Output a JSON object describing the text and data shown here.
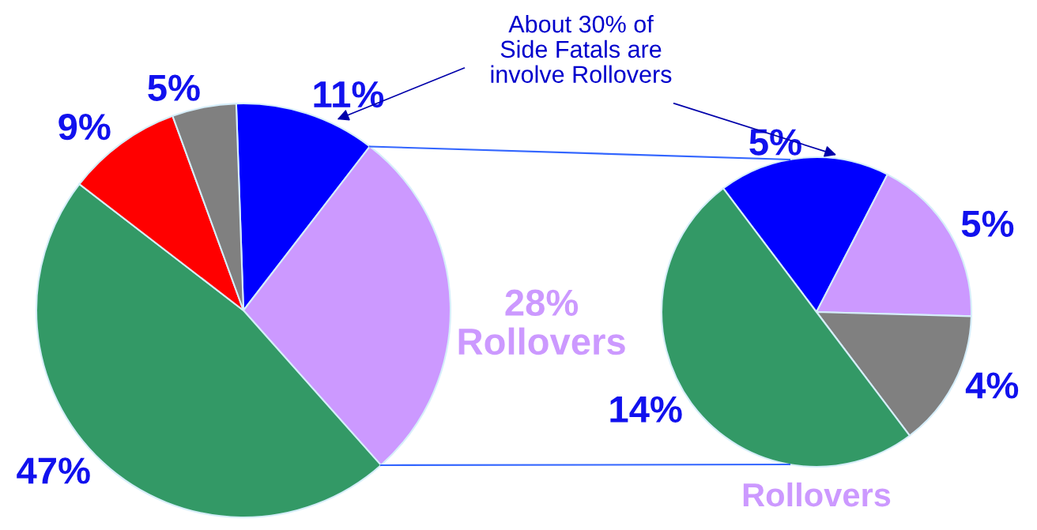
{
  "chart_data": [
    {
      "type": "pie",
      "categories": [
        null,
        "Rollovers",
        null,
        null,
        null
      ],
      "values": [
        11,
        28,
        47,
        9,
        5
      ],
      "colors": [
        "#0000ff",
        "#cc99ff",
        "#339966",
        "#ff0000",
        "#808080"
      ],
      "value_labels": [
        "11%",
        "28%",
        "47%",
        "9%",
        "5%"
      ],
      "annotations": [
        "About 30% of\nSide Fatals are\ninvolve Rollovers"
      ]
    },
    {
      "type": "pie",
      "categories": [
        null,
        null,
        null,
        null
      ],
      "values": [
        5,
        5,
        4,
        14
      ],
      "colors": [
        "#0000ff",
        "#cc99ff",
        "#808080",
        "#339966"
      ],
      "value_labels": [
        "5%",
        "5%",
        "4%",
        "14%"
      ],
      "annotations": [
        "Rollovers"
      ]
    }
  ]
}
